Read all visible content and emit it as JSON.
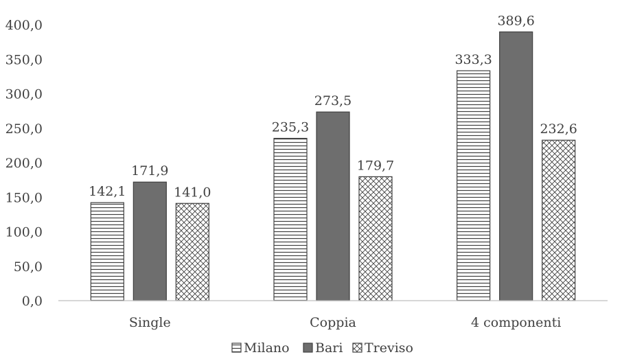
{
  "chart_data": {
    "type": "bar",
    "categories": [
      "Single",
      "Coppia",
      "4 componenti"
    ],
    "series": [
      {
        "name": "Milano",
        "values": [
          142.1,
          235.3,
          333.3
        ],
        "pattern": "horizontal-lines"
      },
      {
        "name": "Bari",
        "values": [
          171.9,
          273.5,
          389.6
        ],
        "pattern": "solid"
      },
      {
        "name": "Treviso",
        "values": [
          141.0,
          179.7,
          232.6
        ],
        "pattern": "crosshatch"
      }
    ],
    "data_labels": [
      [
        "142,1",
        "235,3",
        "333,3"
      ],
      [
        "171,9",
        "273,5",
        "389,6"
      ],
      [
        "141,0",
        "179,7",
        "232,6"
      ]
    ],
    "y_tick_labels": [
      "0,0",
      "50,0",
      "100,0",
      "150,0",
      "200,0",
      "250,0",
      "300,0",
      "350,0",
      "400,0"
    ],
    "ylim": [
      0,
      400
    ],
    "title": "",
    "xlabel": "",
    "ylabel": "",
    "grid": false,
    "legend_position": "bottom",
    "colors": {
      "bari": "#6e6e6e",
      "outline": "#404040",
      "text": "#404040",
      "axis": "#bfbfbf"
    }
  }
}
